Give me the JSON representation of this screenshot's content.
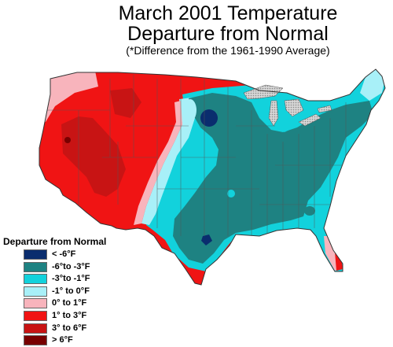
{
  "title": {
    "line1": "March 2001 Temperature",
    "line2": "Departure from Normal",
    "line3": "(*Difference from the 1961-1990 Average)"
  },
  "legend": {
    "title": "Departure from Normal",
    "items": [
      {
        "label": "< -6°F",
        "color": "#0a2d6e"
      },
      {
        "label": "-6°to -3°F",
        "color": "#1e8282"
      },
      {
        "label": "-3°to -1°F",
        "color": "#12d2dc"
      },
      {
        "label": "-1° to 0°F",
        "color": "#a8f0f8"
      },
      {
        "label": "0° to 1°F",
        "color": "#f8b4bc"
      },
      {
        "label": "1° to 3°F",
        "color": "#f01414"
      },
      {
        "label": "3° to 6°F",
        "color": "#c81414"
      },
      {
        "label": "> 6°F",
        "color": "#780000"
      }
    ]
  },
  "colors": {
    "great_lakes": "#b4b4b4",
    "state_lines": "#555555",
    "outline": "#333333"
  }
}
